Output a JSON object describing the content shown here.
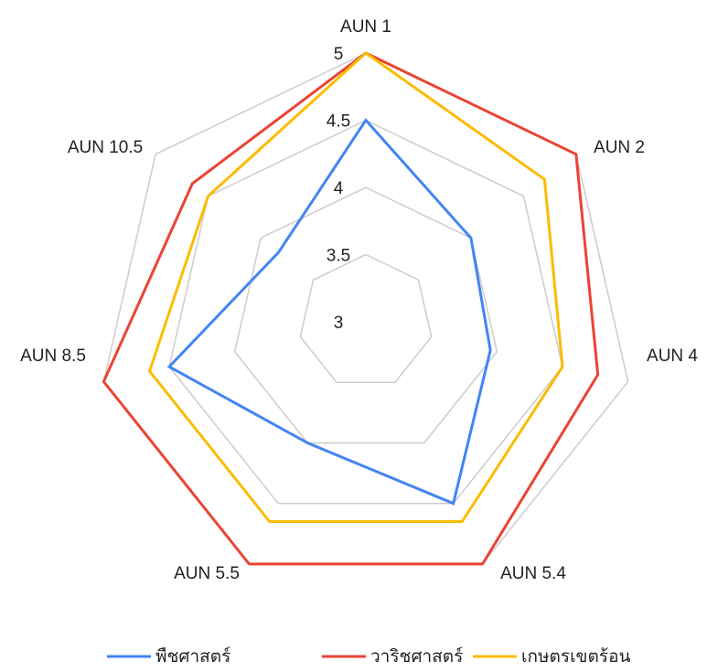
{
  "chart_data": {
    "type": "radar",
    "categories": [
      "AUN 1",
      "AUN 2",
      "AUN 4",
      "AUN 5.4",
      "AUN 5.5",
      "AUN 8.5",
      "AUN 10.5"
    ],
    "series": [
      {
        "name": "พืชศาสตร์",
        "color": "#4285f4",
        "values": [
          4.5,
          4.0,
          3.95,
          4.5,
          4.0,
          4.5,
          3.83
        ]
      },
      {
        "name": "วาริชศาสตร์",
        "color": "#ea4335",
        "values": [
          5,
          5,
          4.77,
          5,
          5,
          5,
          4.65
        ]
      },
      {
        "name": "เกษตรเขตร้อน",
        "color": "#fbbc04",
        "values": [
          5,
          4.7,
          4.5,
          4.65,
          4.65,
          4.65,
          4.5
        ]
      }
    ],
    "ylim": [
      3,
      5
    ],
    "yticks": [
      3,
      3.5,
      4,
      4.5,
      5
    ],
    "grid": true,
    "legend": "bottom"
  }
}
